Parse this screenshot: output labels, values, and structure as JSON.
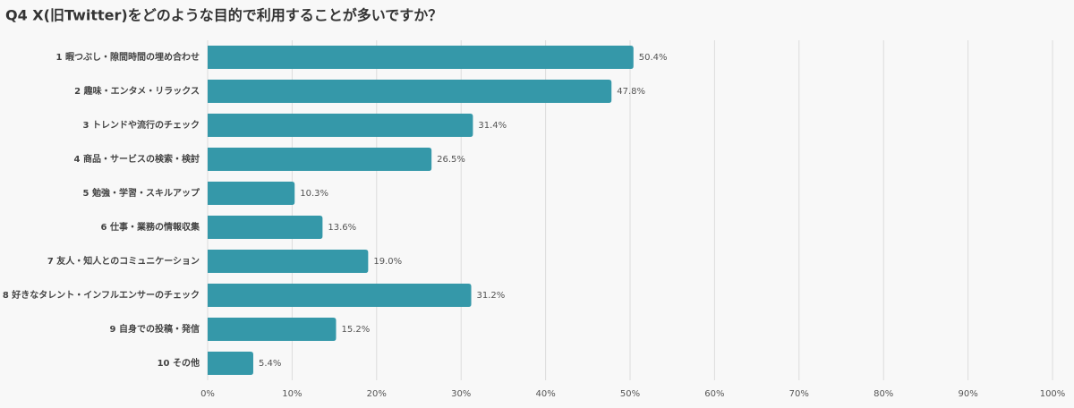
{
  "chart_data": {
    "type": "bar",
    "title": "Q4 X(旧Twitter)をどのような目的で利用することが多いですか？",
    "categories": [
      "1 暇つぶし・隙間時間の埋め合わせ",
      "2 趣味・エンタメ・リラックス",
      "3 トレンドや流行のチェック",
      "4 商品・サービスの検索・検討",
      "5 勉強・学習・スキルアップ",
      "6 仕事・業務の情報収集",
      "7 友人・知人とのコミュニケーション",
      "8 好きなタレント・インフルエンサーのチェック",
      "9 自身での投稿・発信",
      "10 その他"
    ],
    "values": [
      50.4,
      47.8,
      31.4,
      26.5,
      10.3,
      13.6,
      19.0,
      31.2,
      15.2,
      5.4
    ],
    "value_labels": [
      "50.4%",
      "47.8%",
      "31.4%",
      "26.5%",
      "10.3%",
      "13.6%",
      "19.0%",
      "31.2%",
      "15.2%",
      "5.4%"
    ],
    "color": "#3598a9",
    "xlim": [
      0,
      100
    ],
    "xticks": [
      {
        "value": 0,
        "label": "0%"
      },
      {
        "value": 10,
        "label": "10%"
      },
      {
        "value": 20,
        "label": "20%"
      },
      {
        "value": 30,
        "label": "30%"
      },
      {
        "value": 40,
        "label": "40%"
      },
      {
        "value": 50,
        "label": "50%"
      },
      {
        "value": 60,
        "label": "60%"
      },
      {
        "value": 70,
        "label": "70%"
      },
      {
        "value": 80,
        "label": "80%"
      },
      {
        "value": 90,
        "label": "90%"
      },
      {
        "value": 100,
        "label": "100%"
      }
    ],
    "grid": true
  }
}
